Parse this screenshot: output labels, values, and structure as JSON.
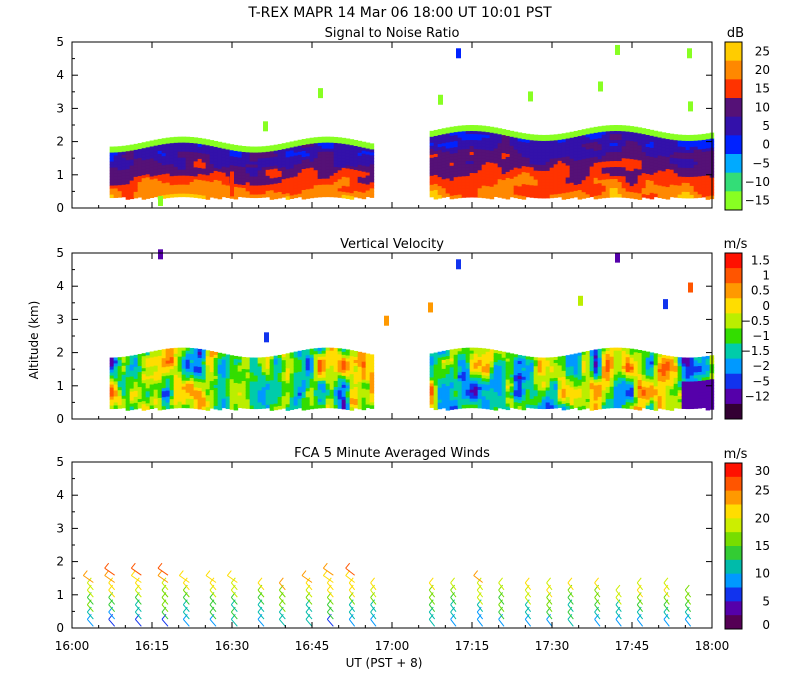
{
  "figure_title": "T-REX   MAPR 14 Mar 06   18:00 UT   10:01   PST",
  "x_axis_label": "UT   (PST + 8)",
  "y_axis_label": "Altitude (km)",
  "x_ticks": [
    "16:00",
    "16:15",
    "16:30",
    "16:45",
    "17:00",
    "17:15",
    "17:30",
    "17:45",
    "18:00"
  ],
  "y_ticks": [
    "0",
    "1",
    "2",
    "3",
    "4",
    "5"
  ],
  "chart_data": [
    {
      "type": "heatmap",
      "title": "Signal to Noise Ratio",
      "xlabel": "UT (PST + 8)",
      "ylabel": "Altitude (km)",
      "x_range": [
        "16:00",
        "18:00"
      ],
      "ylim": [
        0,
        5
      ],
      "data_gaps": [
        [
          "16:57",
          "17:07"
        ]
      ],
      "data_bottom_km": 0.35,
      "echo_top_km": 2.0,
      "colorbar": {
        "unit": "dB",
        "labels": [
          "25",
          "20",
          "15",
          "10",
          "5",
          "0",
          "−5",
          "−10",
          "−15"
        ],
        "colors": [
          "#ffcc00",
          "#ff8800",
          "#ff3300",
          "#551177",
          "#3311aa",
          "#0022ff",
          "#00aaff",
          "#33dd77",
          "#88ff22"
        ]
      }
    },
    {
      "type": "heatmap",
      "title": "Vertical Velocity",
      "xlabel": "UT (PST + 8)",
      "ylabel": "Altitude (km)",
      "x_range": [
        "16:00",
        "18:00"
      ],
      "ylim": [
        0,
        5
      ],
      "data_gaps": [
        [
          "16:57",
          "17:07"
        ]
      ],
      "data_bottom_km": 0.35,
      "echo_top_km": 2.0,
      "colorbar": {
        "unit": "m/s",
        "labels": [
          "1.5",
          "1",
          "0.5",
          "0",
          "−0.5",
          "−1",
          "−1.5",
          "−2",
          "−5",
          "−12"
        ],
        "colors": [
          "#ff1100",
          "#ff5500",
          "#ff9900",
          "#ffdd00",
          "#bbee00",
          "#33dd00",
          "#00ccaa",
          "#0099ff",
          "#1133ee",
          "#5500aa",
          "#330033"
        ]
      }
    },
    {
      "type": "scatter",
      "title": "FCA 5 Minute Averaged Winds",
      "xlabel": "UT (PST + 8)",
      "ylabel": "Altitude (km)",
      "x_range": [
        "16:00",
        "18:00"
      ],
      "ylim": [
        0,
        5
      ],
      "barb_times": [
        "16:04",
        "16:08",
        "16:13",
        "16:18",
        "16:22",
        "16:27",
        "16:31",
        "16:36",
        "16:40",
        "16:45",
        "16:49",
        "16:53",
        "16:57",
        "17:08",
        "17:12",
        "17:17",
        "17:21",
        "17:26",
        "17:30",
        "17:34",
        "17:39",
        "17:43",
        "17:47",
        "17:52",
        "17:56"
      ],
      "barb_tops_km": [
        1.5,
        1.6,
        1.8,
        1.8,
        1.5,
        1.4,
        1.4,
        1.3,
        1.3,
        1.5,
        1.7,
        1.6,
        1.3,
        1.2,
        1.2,
        1.4,
        1.3,
        1.2,
        1.3,
        1.2,
        1.2,
        1.1,
        1.2,
        1.2,
        1.0
      ],
      "colorbar": {
        "unit": "m/s",
        "labels": [
          "30",
          "25",
          "20",
          "15",
          "10",
          "5",
          "0"
        ],
        "colors": [
          "#ff1100",
          "#ff5500",
          "#ff9900",
          "#ffdd00",
          "#ccee00",
          "#77dd00",
          "#33cc33",
          "#00bbaa",
          "#0099ff",
          "#1133ee",
          "#5500aa",
          "#550055"
        ]
      }
    }
  ]
}
